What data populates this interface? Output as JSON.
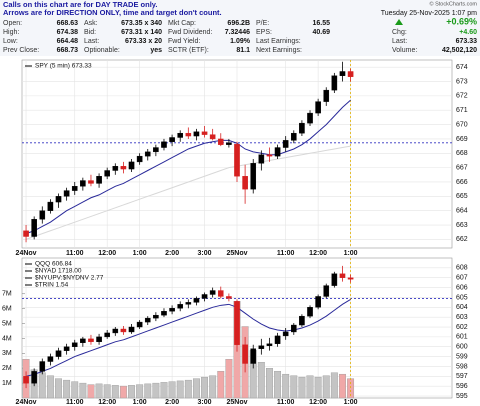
{
  "header": {
    "notice": [
      "Calls on this chart are for DAY TRADE only.",
      "Arrows are for DIRECTION ONLY, time and target don't count."
    ],
    "copyright": "© StockCharts.com",
    "date": "Tuesday 25-Nov-2025 1:07 pm",
    "change_pct": "+0.69%",
    "right_rows": [
      {
        "label": "Chg:",
        "value": "+4.60"
      },
      {
        "label": "Last:",
        "value": "673.33"
      },
      {
        "label": "Volume:",
        "value": "42,502,120"
      }
    ],
    "stats": [
      [
        {
          "label": "Open:",
          "value": "668.63"
        },
        {
          "label": "Ask:",
          "value": "673.35 x 340"
        },
        {
          "label": "Mkt Cap:",
          "value": "696.2B"
        },
        {
          "label": "P/E:",
          "value": "16.55"
        }
      ],
      [
        {
          "label": "High:",
          "value": "674.38"
        },
        {
          "label": "Bid:",
          "value": "673.31 x 140"
        },
        {
          "label": "Fwd Dividend:",
          "value": "7.32446"
        },
        {
          "label": "EPS:",
          "value": "40.69"
        }
      ],
      [
        {
          "label": "Low:",
          "value": "664.48"
        },
        {
          "label": "Last:",
          "value": "673.33 x 20"
        },
        {
          "label": "Fwd Yield:",
          "value": "1.09%"
        },
        {
          "label": "Last Earnings:"
        }
      ],
      [
        {
          "label": "Prev Close:",
          "value": "668.73"
        },
        {
          "label": "Optionable:",
          "value": "yes"
        },
        {
          "label": "SCTR (ETF):",
          "value": "81.1"
        },
        {
          "label": "Next Earnings:"
        }
      ]
    ]
  },
  "chart_data": [
    {
      "type": "candlestick",
      "labels": [
        "SPY (5 min) 673.33"
      ],
      "up_color": "#000000",
      "down_color": "#d62020",
      "grid": true,
      "xlim": [
        -0.5,
        52.5
      ],
      "xticks": [
        {
          "value": 0,
          "label": "24Nov"
        },
        {
          "value": 6,
          "label": "11:00"
        },
        {
          "value": 10,
          "label": "12:00"
        },
        {
          "value": 14,
          "label": "1:00"
        },
        {
          "value": 18,
          "label": "2:00"
        },
        {
          "value": 22,
          "label": "3:00"
        },
        {
          "value": 26,
          "label": "25Nov"
        },
        {
          "value": 32,
          "label": "11:00"
        },
        {
          "value": 36,
          "label": "12:00"
        },
        {
          "value": 40,
          "label": "1:00"
        }
      ],
      "ylim": [
        661.4,
        674.5
      ],
      "yticks": [
        662,
        663,
        664,
        665,
        666,
        667,
        668,
        669,
        670,
        671,
        672,
        673,
        674
      ],
      "hline": 668.73,
      "hline_color": "#3030c0",
      "vline": 40,
      "vline_color": "#e0b000",
      "open": [
        662.6,
        662.2,
        663.4,
        664.0,
        664.6,
        665.0,
        665.4,
        665.7,
        666.1,
        665.9,
        666.4,
        666.8,
        667.1,
        666.9,
        667.4,
        667.8,
        668.1,
        668.4,
        668.8,
        669.1,
        669.4,
        669.2,
        669.5,
        669.3,
        669.0,
        668.6,
        668.63,
        666.4,
        665.5,
        667.3,
        667.9,
        667.8,
        668.4,
        668.9,
        669.4,
        670.1,
        670.8,
        671.6,
        672.4,
        673.4,
        673.7
      ],
      "high": [
        663.0,
        663.6,
        664.3,
        664.8,
        665.2,
        665.6,
        666.0,
        666.3,
        666.5,
        666.6,
        667.0,
        667.3,
        667.4,
        667.6,
        668.0,
        668.3,
        668.6,
        669.0,
        669.3,
        669.6,
        669.8,
        669.7,
        669.9,
        669.7,
        669.4,
        669.0,
        668.8,
        667.2,
        667.6,
        668.2,
        668.4,
        668.6,
        669.2,
        669.6,
        670.3,
        671.0,
        671.8,
        672.6,
        673.6,
        674.38,
        673.9
      ],
      "low": [
        661.8,
        662.0,
        663.1,
        663.8,
        664.2,
        664.7,
        665.1,
        665.4,
        665.7,
        665.6,
        666.2,
        666.5,
        666.6,
        666.7,
        667.2,
        667.5,
        667.8,
        668.2,
        668.5,
        668.8,
        669.0,
        668.9,
        669.1,
        668.9,
        668.5,
        668.4,
        666.0,
        664.48,
        665.2,
        666.8,
        667.4,
        667.6,
        668.1,
        668.7,
        669.2,
        669.9,
        670.6,
        671.3,
        672.2,
        673.0,
        673.0
      ],
      "close": [
        662.2,
        663.4,
        664.0,
        664.6,
        665.0,
        665.4,
        665.7,
        666.1,
        665.9,
        666.4,
        666.8,
        667.1,
        666.9,
        667.4,
        667.8,
        668.1,
        668.4,
        668.8,
        669.1,
        669.4,
        669.2,
        669.5,
        669.3,
        669.0,
        668.6,
        668.73,
        666.4,
        665.5,
        667.3,
        667.9,
        667.8,
        668.4,
        668.9,
        669.4,
        670.1,
        670.8,
        671.6,
        672.4,
        673.4,
        673.7,
        673.33
      ],
      "lines": [
        {
          "color": "#2a2a9a",
          "values": [
            662.4,
            662.6,
            662.9,
            663.2,
            663.6,
            664.0,
            664.3,
            664.6,
            664.9,
            665.1,
            665.4,
            665.7,
            665.9,
            666.2,
            666.5,
            666.8,
            667.1,
            667.4,
            667.7,
            668.0,
            668.3,
            668.5,
            668.7,
            668.8,
            668.9,
            668.9,
            668.7,
            668.3,
            668.1,
            668.0,
            667.9,
            667.9,
            668.1,
            668.3,
            668.6,
            669.0,
            669.5,
            670.0,
            670.6,
            671.2,
            671.7
          ]
        },
        {
          "color": "#d8d8d8",
          "values": [
            662.0,
            662.2,
            662.4,
            662.6,
            662.8,
            663.0,
            663.2,
            663.4,
            663.6,
            663.8,
            664.0,
            664.2,
            664.4,
            664.6,
            664.8,
            665.0,
            665.2,
            665.4,
            665.6,
            665.8,
            666.0,
            666.2,
            666.4,
            666.6,
            666.8,
            667.0,
            667.1,
            667.2,
            667.3,
            667.4,
            667.5,
            667.6,
            667.7,
            667.8,
            667.9,
            668.0,
            668.1,
            668.2,
            668.3,
            668.4,
            668.5
          ]
        }
      ]
    },
    {
      "type": "candlestick",
      "labels": [
        "QQQ 606.84",
        "$NYAD 1718.00",
        "$NYUPV:$NYDNV 2.77",
        "$TRIN 1.54"
      ],
      "up_color": "#000000",
      "down_color": "#d62020",
      "grid": true,
      "xlim": [
        -0.5,
        52.5
      ],
      "xticks": [
        {
          "value": 0,
          "label": "24Nov"
        },
        {
          "value": 6,
          "label": "11:00"
        },
        {
          "value": 10,
          "label": "12:00"
        },
        {
          "value": 14,
          "label": "1:00"
        },
        {
          "value": 18,
          "label": "2:00"
        },
        {
          "value": 22,
          "label": "3:00"
        },
        {
          "value": 26,
          "label": "25Nov"
        },
        {
          "value": 32,
          "label": "11:00"
        },
        {
          "value": 36,
          "label": "12:00"
        },
        {
          "value": 40,
          "label": "1:00"
        }
      ],
      "ylim": [
        594.8,
        609.0
      ],
      "yticks": [
        595,
        596,
        597,
        598,
        599,
        600,
        601,
        602,
        603,
        604,
        605,
        606,
        607,
        608
      ],
      "hline": 604.9,
      "hline_color": "#3030c0",
      "vline": 40,
      "vline_color": "#e0b000",
      "open": [
        597.0,
        596.3,
        597.5,
        598.5,
        599.0,
        599.6,
        600.0,
        600.4,
        600.8,
        600.5,
        601.0,
        601.4,
        601.8,
        601.5,
        602.0,
        602.5,
        602.9,
        603.2,
        603.6,
        603.9,
        604.3,
        604.5,
        604.9,
        605.3,
        605.7,
        605.1,
        604.6,
        600.2,
        598.3,
        599.8,
        600.1,
        600.3,
        601.1,
        601.5,
        602.2,
        603.1,
        604.0,
        605.1,
        606.2,
        607.4,
        607.0
      ],
      "high": [
        597.5,
        597.8,
        598.8,
        599.3,
        599.9,
        600.3,
        600.7,
        601.0,
        601.2,
        601.3,
        601.7,
        602.0,
        602.1,
        602.3,
        602.7,
        603.1,
        603.5,
        603.9,
        604.2,
        604.6,
        604.8,
        605.1,
        605.5,
        606.0,
        606.1,
        605.4,
        604.8,
        601.0,
        600.2,
        600.8,
        600.9,
        601.4,
        601.9,
        602.4,
        603.3,
        604.2,
        605.3,
        606.4,
        607.6,
        608.2,
        607.3
      ],
      "low": [
        595.8,
        596.0,
        597.2,
        598.1,
        598.7,
        599.2,
        599.6,
        600.0,
        600.2,
        600.2,
        600.8,
        601.1,
        601.2,
        601.3,
        601.8,
        602.2,
        602.6,
        603.0,
        603.3,
        603.6,
        603.9,
        604.2,
        604.6,
        605.0,
        604.9,
        604.6,
        599.5,
        597.4,
        597.8,
        599.2,
        599.6,
        600.0,
        600.7,
        601.2,
        602.0,
        602.9,
        603.8,
        604.9,
        606.0,
        606.6,
        606.5
      ],
      "close": [
        596.3,
        597.5,
        598.5,
        599.0,
        599.6,
        600.0,
        600.4,
        600.8,
        600.5,
        601.0,
        601.4,
        601.8,
        601.5,
        602.0,
        602.5,
        602.9,
        603.2,
        603.6,
        603.9,
        604.3,
        604.5,
        604.9,
        605.3,
        605.7,
        605.1,
        604.9,
        600.2,
        598.3,
        599.8,
        600.1,
        600.3,
        601.1,
        601.5,
        602.2,
        603.1,
        604.0,
        605.1,
        606.2,
        607.4,
        607.0,
        606.84
      ],
      "lines": [
        {
          "color": "#2a2a9a",
          "values": [
            597.0,
            597.2,
            597.5,
            597.8,
            598.2,
            598.6,
            599.0,
            599.3,
            599.6,
            599.9,
            600.2,
            600.5,
            600.7,
            601.0,
            601.3,
            601.6,
            601.9,
            602.2,
            602.5,
            602.8,
            603.1,
            603.4,
            603.7,
            604.0,
            604.2,
            604.3,
            604.0,
            603.4,
            602.8,
            602.3,
            601.9,
            601.7,
            601.6,
            601.7,
            601.9,
            602.2,
            602.6,
            603.1,
            603.7,
            604.3,
            604.8
          ]
        }
      ],
      "volume": {
        "up_color": "#c4c4c4",
        "down_color": "#f0a8a8",
        "ylim": [
          0,
          9400000
        ],
        "yticks": [
          {
            "value": 1000000,
            "label": "1M"
          },
          {
            "value": 2000000,
            "label": "2M"
          },
          {
            "value": 3000000,
            "label": "3M"
          },
          {
            "value": 4000000,
            "label": "4M"
          },
          {
            "value": 5000000,
            "label": "5M"
          },
          {
            "value": 6000000,
            "label": "6M"
          },
          {
            "value": 7000000,
            "label": "7M"
          }
        ],
        "values": [
          2600000,
          1900000,
          1700000,
          1500000,
          1300000,
          1200000,
          1100000,
          1000000,
          900000,
          950000,
          900000,
          850000,
          800000,
          850000,
          900000,
          950000,
          1000000,
          1050000,
          1100000,
          1150000,
          1200000,
          1300000,
          1400000,
          1500000,
          1800000,
          2600000,
          6500000,
          4800000,
          3200000,
          2400000,
          2000000,
          1800000,
          1600000,
          1500000,
          1400000,
          1500000,
          1400000,
          1500000,
          1700000,
          1600000,
          1300000
        ]
      }
    }
  ]
}
